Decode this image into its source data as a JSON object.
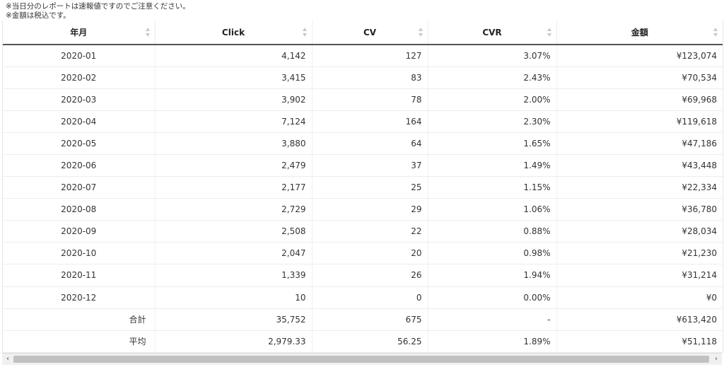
{
  "notes": [
    "※当日分のレポートは速報値ですのでご注意ください。",
    "※金額は税込です。"
  ],
  "table": {
    "columns": [
      "年月",
      "Click",
      "CV",
      "CVR",
      "金額"
    ],
    "rows": [
      [
        "2020-01",
        "4,142",
        "127",
        "3.07%",
        "¥123,074"
      ],
      [
        "2020-02",
        "3,415",
        "83",
        "2.43%",
        "¥70,534"
      ],
      [
        "2020-03",
        "3,902",
        "78",
        "2.00%",
        "¥69,968"
      ],
      [
        "2020-04",
        "7,124",
        "164",
        "2.30%",
        "¥119,618"
      ],
      [
        "2020-05",
        "3,880",
        "64",
        "1.65%",
        "¥47,186"
      ],
      [
        "2020-06",
        "2,479",
        "37",
        "1.49%",
        "¥43,448"
      ],
      [
        "2020-07",
        "2,177",
        "25",
        "1.15%",
        "¥22,334"
      ],
      [
        "2020-08",
        "2,729",
        "29",
        "1.06%",
        "¥36,780"
      ],
      [
        "2020-09",
        "2,508",
        "22",
        "0.88%",
        "¥28,034"
      ],
      [
        "2020-10",
        "2,047",
        "20",
        "0.98%",
        "¥21,230"
      ],
      [
        "2020-11",
        "1,339",
        "26",
        "1.94%",
        "¥31,214"
      ],
      [
        "2020-12",
        "10",
        "0",
        "0.00%",
        "¥0"
      ]
    ],
    "summary": [
      [
        "合計",
        "35,752",
        "675",
        "-",
        "¥613,420"
      ],
      [
        "平均",
        "2,979.33",
        "56.25",
        "1.89%",
        "¥51,118"
      ]
    ]
  },
  "scrollbar": {
    "left_arrow": "‹",
    "right_arrow": "›"
  }
}
